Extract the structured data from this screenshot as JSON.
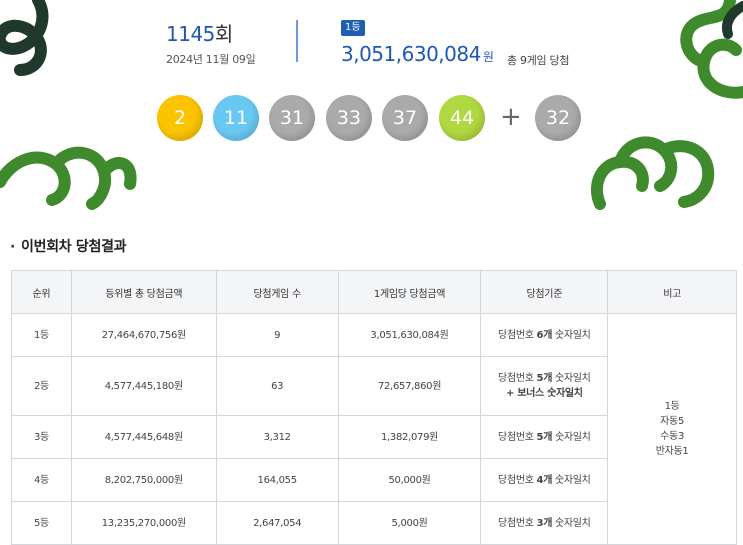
{
  "draw": {
    "round_number": "1145",
    "round_suffix": "회",
    "date": "2024년 11월 09일",
    "first_prize_badge": "1등",
    "first_prize_amount": "3,051,630,084",
    "first_prize_unit": "원",
    "winners_text": "총 9게임 당첨",
    "numbers": [
      {
        "value": "2",
        "color": "#fbc400"
      },
      {
        "value": "11",
        "color": "#69c8f2"
      },
      {
        "value": "31",
        "color": "#aaaaaa"
      },
      {
        "value": "33",
        "color": "#aaaaaa"
      },
      {
        "value": "37",
        "color": "#aaaaaa"
      },
      {
        "value": "44",
        "color": "#b0d840"
      }
    ],
    "plus_sign": "+",
    "bonus": {
      "value": "32",
      "color": "#aaaaaa"
    }
  },
  "section": {
    "bullet": "·",
    "title": "이번회차 당첨결과"
  },
  "table": {
    "headers": [
      "순위",
      "등위별 총 당첨금액",
      "당첨게임 수",
      "1게임당 당첨금액",
      "당첨기준",
      "비고"
    ],
    "rows": [
      {
        "rank": "1등",
        "total": "27,464,670,756원",
        "games": "9",
        "per_game": "3,051,630,084원",
        "criteria_prefix": "당첨번호 ",
        "criteria_bold": "6개",
        "criteria_suffix": " 숫자일치",
        "criteria_line2": ""
      },
      {
        "rank": "2등",
        "total": "4,577,445,180원",
        "games": "63",
        "per_game": "72,657,860원",
        "criteria_prefix": "당첨번호 ",
        "criteria_bold": "5개",
        "criteria_suffix": " 숫자일치",
        "criteria_line2": "+ 보너스 숫자일치"
      },
      {
        "rank": "3등",
        "total": "4,577,445,648원",
        "games": "3,312",
        "per_game": "1,382,079원",
        "criteria_prefix": "당첨번호 ",
        "criteria_bold": "5개",
        "criteria_suffix": " 숫자일치",
        "criteria_line2": ""
      },
      {
        "rank": "4등",
        "total": "8,202,750,000원",
        "games": "164,055",
        "per_game": "50,000원",
        "criteria_prefix": "당첨번호 ",
        "criteria_bold": "4개",
        "criteria_suffix": " 숫자일치",
        "criteria_line2": ""
      },
      {
        "rank": "5등",
        "total": "13,235,270,000원",
        "games": "2,647,054",
        "per_game": "5,000원",
        "criteria_prefix": "당첨번호 ",
        "criteria_bold": "3개",
        "criteria_suffix": " 숫자일치",
        "criteria_line2": ""
      }
    ],
    "note_lines": [
      "1등",
      "자동5",
      "수동3",
      "반자동1"
    ]
  },
  "colors": {
    "accent_blue": "#1e58b4",
    "deco_green": "#3e8a2c",
    "deco_dark": "#1f3a2c"
  }
}
